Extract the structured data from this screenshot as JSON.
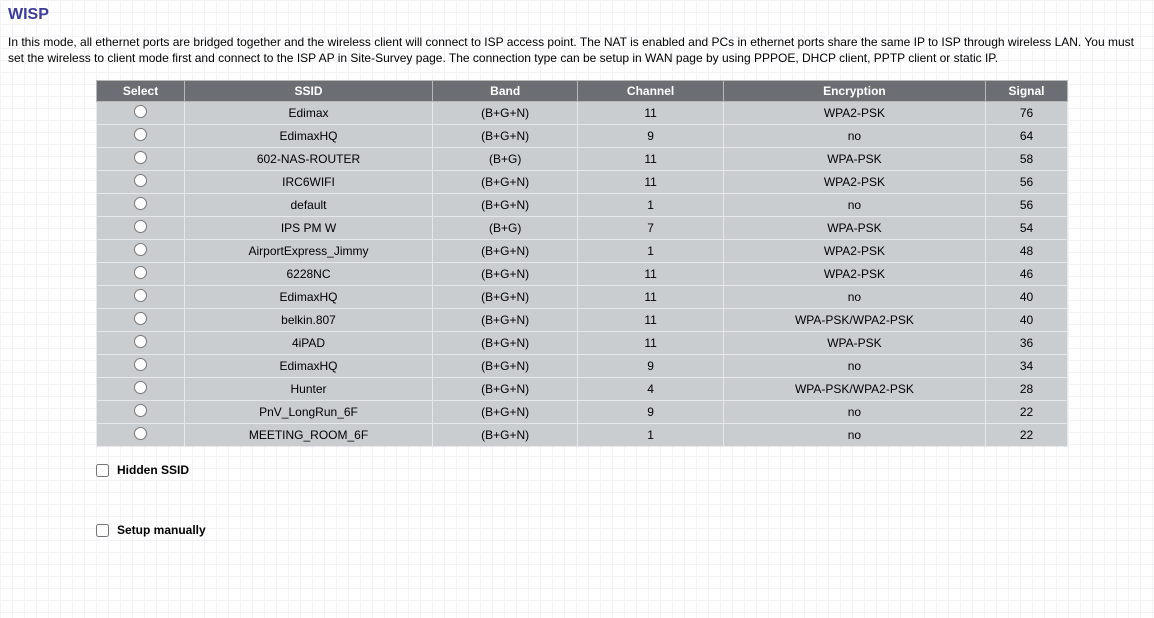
{
  "title": "WISP",
  "description": "In this mode, all ethernet ports are bridged together and the wireless client will connect to ISP access point. The NAT is enabled and PCs in ethernet ports share the same IP to ISP through wireless LAN. You must set the wireless to client mode first and connect to the ISP AP in Site-Survey page. The connection type can be setup in WAN page by using PPPOE, DHCP client, PPTP client or static IP.",
  "columns": {
    "select": "Select",
    "ssid": "SSID",
    "band": "Band",
    "channel": "Channel",
    "encryption": "Encryption",
    "signal": "Signal"
  },
  "rows": [
    {
      "ssid": "Edimax",
      "band": "(B+G+N)",
      "channel": "11",
      "encryption": "WPA2-PSK",
      "signal": "76"
    },
    {
      "ssid": "EdimaxHQ",
      "band": "(B+G+N)",
      "channel": "9",
      "encryption": "no",
      "signal": "64"
    },
    {
      "ssid": "602-NAS-ROUTER",
      "band": "(B+G)",
      "channel": "11",
      "encryption": "WPA-PSK",
      "signal": "58"
    },
    {
      "ssid": "IRC6WIFI",
      "band": "(B+G+N)",
      "channel": "11",
      "encryption": "WPA2-PSK",
      "signal": "56"
    },
    {
      "ssid": "default",
      "band": "(B+G+N)",
      "channel": "1",
      "encryption": "no",
      "signal": "56"
    },
    {
      "ssid": "IPS PM W",
      "band": "(B+G)",
      "channel": "7",
      "encryption": "WPA-PSK",
      "signal": "54"
    },
    {
      "ssid": "AirportExpress_Jimmy",
      "band": "(B+G+N)",
      "channel": "1",
      "encryption": "WPA2-PSK",
      "signal": "48"
    },
    {
      "ssid": "6228NC",
      "band": "(B+G+N)",
      "channel": "11",
      "encryption": "WPA2-PSK",
      "signal": "46"
    },
    {
      "ssid": "EdimaxHQ",
      "band": "(B+G+N)",
      "channel": "11",
      "encryption": "no",
      "signal": "40"
    },
    {
      "ssid": "belkin.807",
      "band": "(B+G+N)",
      "channel": "11",
      "encryption": "WPA-PSK/WPA2-PSK",
      "signal": "40"
    },
    {
      "ssid": "4iPAD",
      "band": "(B+G+N)",
      "channel": "11",
      "encryption": "WPA-PSK",
      "signal": "36"
    },
    {
      "ssid": "EdimaxHQ",
      "band": "(B+G+N)",
      "channel": "9",
      "encryption": "no",
      "signal": "34"
    },
    {
      "ssid": "Hunter",
      "band": "(B+G+N)",
      "channel": "4",
      "encryption": "WPA-PSK/WPA2-PSK",
      "signal": "28"
    },
    {
      "ssid": "PnV_LongRun_6F",
      "band": "(B+G+N)",
      "channel": "9",
      "encryption": "no",
      "signal": "22"
    },
    {
      "ssid": "MEETING_ROOM_6F",
      "band": "(B+G+N)",
      "channel": "1",
      "encryption": "no",
      "signal": "22"
    }
  ],
  "options": {
    "hidden_ssid_label": "Hidden SSID",
    "setup_manually_label": "Setup manually"
  }
}
